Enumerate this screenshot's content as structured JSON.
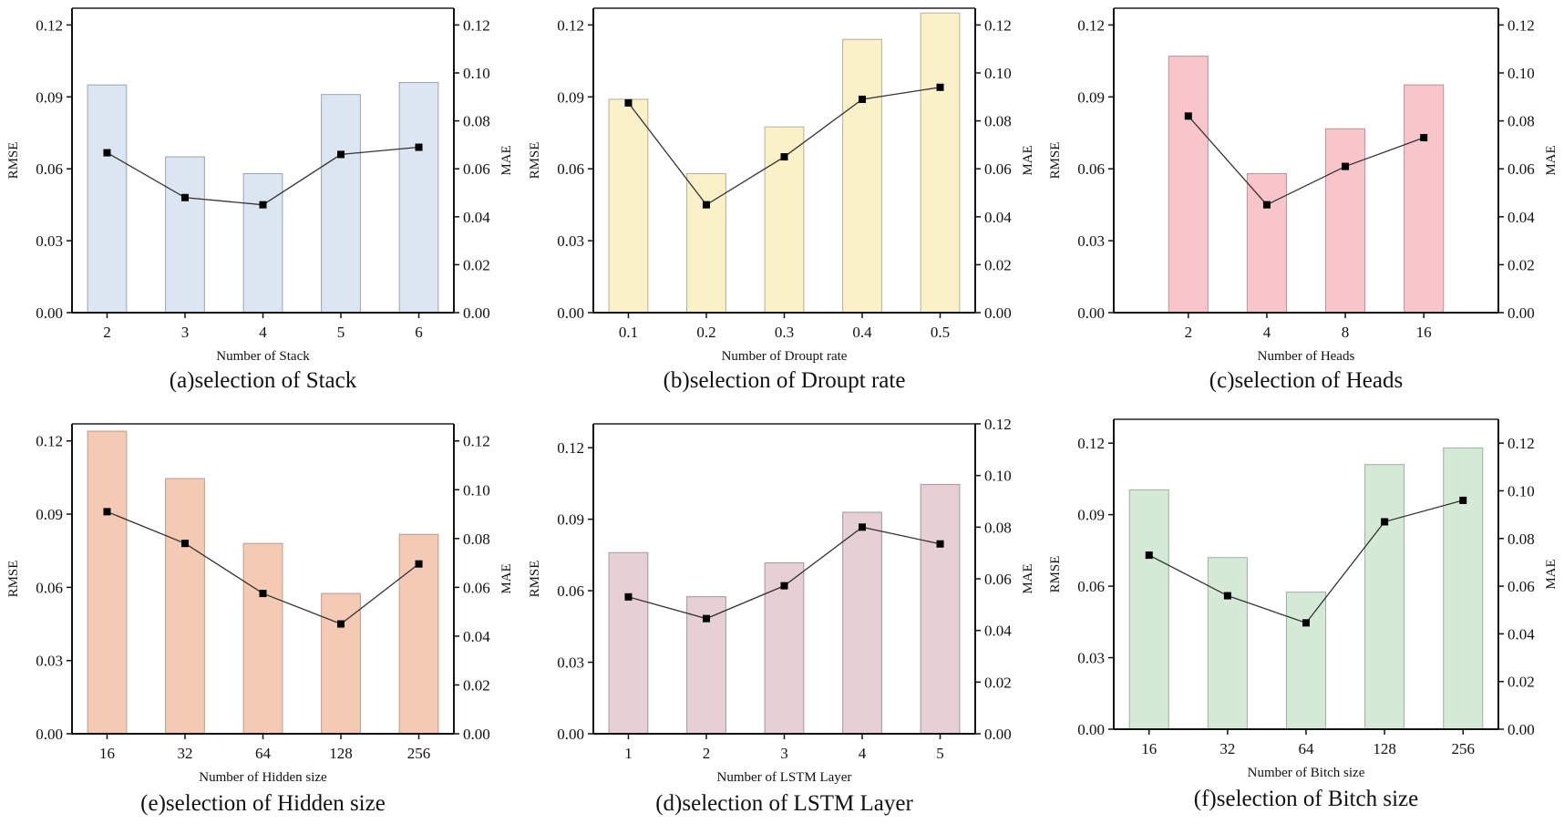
{
  "chart_data": [
    {
      "id": "a",
      "type": "bar+line",
      "caption": "(a)selection of Stack",
      "xlabel": "Number of Stack",
      "ylabel": "RMSE",
      "y2label": "MAE",
      "categories": [
        "2",
        "3",
        "4",
        "5",
        "6"
      ],
      "rmse": [
        0.095,
        0.065,
        0.058,
        0.091,
        0.096
      ],
      "mae": [
        0.0667,
        0.048,
        0.045,
        0.066,
        0.069
      ],
      "ylim": [
        0,
        0.127
      ],
      "y2lim": [
        0,
        0.127
      ],
      "yticks": [
        "0.00",
        "0.03",
        "0.06",
        "0.09",
        "0.12"
      ],
      "y2ticks": [
        "0.00",
        "0.02",
        "0.04",
        "0.06",
        "0.08",
        "0.10",
        "0.12"
      ],
      "bar_color": "#dce6f2",
      "bar_edge": "#9aa4b0"
    },
    {
      "id": "b",
      "type": "bar+line",
      "caption": "(b)selection of Droupt rate",
      "xlabel": "Number of Droupt rate",
      "ylabel": "RMSE",
      "y2label": "MAE",
      "categories": [
        "0.1",
        "0.2",
        "0.3",
        "0.4",
        "0.5"
      ],
      "rmse": [
        0.089,
        0.058,
        0.0775,
        0.114,
        0.125
      ],
      "mae": [
        0.0875,
        0.045,
        0.065,
        0.089,
        0.094
      ],
      "ylim": [
        0,
        0.127
      ],
      "y2lim": [
        0,
        0.127
      ],
      "yticks": [
        "0.00",
        "0.03",
        "0.06",
        "0.09",
        "0.12"
      ],
      "y2ticks": [
        "0.00",
        "0.02",
        "0.04",
        "0.06",
        "0.08",
        "0.10",
        "0.12"
      ],
      "bar_color": "#fbf1c8",
      "bar_edge": "#b8ae90"
    },
    {
      "id": "c",
      "type": "bar+line",
      "caption": "(c)selection of Heads",
      "xlabel": "Number of Heads",
      "ylabel": "RMSE",
      "y2label": "MAE",
      "categories": [
        "2",
        "4",
        "8",
        "16"
      ],
      "rmse": [
        0.107,
        0.058,
        0.0767,
        0.095
      ],
      "mae": [
        0.082,
        0.045,
        0.061,
        0.073
      ],
      "ylim": [
        0,
        0.127
      ],
      "y2lim": [
        0,
        0.127
      ],
      "yticks": [
        "0.00",
        "0.03",
        "0.06",
        "0.09",
        "0.12"
      ],
      "y2ticks": [
        "0.00",
        "0.02",
        "0.04",
        "0.06",
        "0.08",
        "0.10",
        "0.12"
      ],
      "bar_color": "#f8c5cb",
      "bar_edge": "#c09096"
    },
    {
      "id": "e",
      "type": "bar+line",
      "caption": "(e)selection of Hidden size",
      "xlabel": "Number of Hidden size",
      "ylabel": "RMSE",
      "y2label": "MAE",
      "categories": [
        "16",
        "32",
        "64",
        "128",
        "256"
      ],
      "rmse": [
        0.124,
        0.1046,
        0.078,
        0.0575,
        0.0817
      ],
      "mae": [
        0.091,
        0.078,
        0.0575,
        0.045,
        0.0696
      ],
      "ylim": [
        0,
        0.127
      ],
      "y2lim": [
        0,
        0.127
      ],
      "yticks": [
        "0.00",
        "0.03",
        "0.06",
        "0.09",
        "0.12"
      ],
      "y2ticks": [
        "0.00",
        "0.02",
        "0.04",
        "0.06",
        "0.08",
        "0.10",
        "0.12"
      ],
      "bar_color": "#f5cab4",
      "bar_edge": "#c09a88"
    },
    {
      "id": "d",
      "type": "bar+line",
      "caption": "(d)selection of LSTM Layer",
      "xlabel": "Number of LSTM Layer",
      "ylabel": "RMSE",
      "y2label": "MAE",
      "categories": [
        "1",
        "2",
        "3",
        "4",
        "5"
      ],
      "rmse": [
        0.076,
        0.0575,
        0.0717,
        0.0929,
        0.1046
      ],
      "mae": [
        0.053,
        0.0446,
        0.0573,
        0.08,
        0.0735
      ],
      "ylim": [
        0,
        0.13
      ],
      "y2lim": [
        0,
        0.12
      ],
      "yticks": [
        "0.00",
        "0.03",
        "0.06",
        "0.09",
        "0.12"
      ],
      "y2ticks": [
        "0.00",
        "0.02",
        "0.04",
        "0.06",
        "0.08",
        "0.10",
        "0.12"
      ],
      "bar_color": "#e6cfd5",
      "bar_edge": "#a89499"
    },
    {
      "id": "f",
      "type": "bar+line",
      "caption": "(f)selection of Bitch size",
      "xlabel": "Number of Bitch size",
      "ylabel": "RMSE",
      "y2label": "MAE",
      "categories": [
        "16",
        "32",
        "64",
        "128",
        "256"
      ],
      "rmse": [
        0.1004,
        0.072,
        0.0575,
        0.111,
        0.118
      ],
      "mae": [
        0.073,
        0.056,
        0.0446,
        0.087,
        0.096
      ],
      "ylim": [
        0,
        0.13
      ],
      "y2lim": [
        0,
        0.13
      ],
      "yticks": [
        "0.00",
        "0.03",
        "0.06",
        "0.09",
        "0.12"
      ],
      "y2ticks": [
        "0.00",
        "0.02",
        "0.04",
        "0.06",
        "0.08",
        "0.10",
        "0.12"
      ],
      "bar_color": "#d5ead6",
      "bar_edge": "#9cb09e"
    }
  ]
}
